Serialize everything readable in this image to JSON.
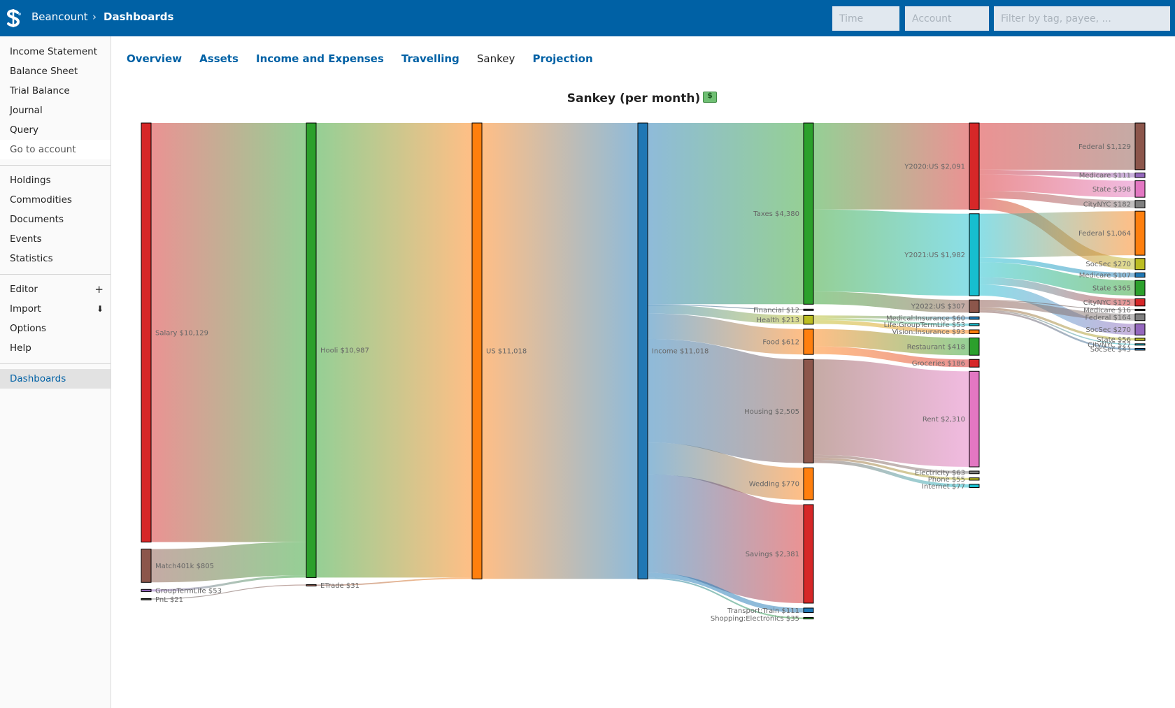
{
  "header": {
    "app_name": "Beancount",
    "separator": "›",
    "page": "Dashboards",
    "time_placeholder": "Time",
    "account_placeholder": "Account",
    "filter_placeholder": "Filter by tag, payee, ..."
  },
  "sidebar": {
    "group1": [
      "Income Statement",
      "Balance Sheet",
      "Trial Balance",
      "Journal",
      "Query"
    ],
    "goto": "Go to account",
    "group2": [
      "Holdings",
      "Commodities",
      "Documents",
      "Events",
      "Statistics"
    ],
    "editor": "Editor",
    "editor_badge": "+",
    "import": "Import",
    "import_badge": "⬇",
    "options": "Options",
    "help": "Help",
    "dashboards": "Dashboards"
  },
  "tabs": [
    "Overview",
    "Assets",
    "Income and Expenses",
    "Travelling",
    "Sankey",
    "Projection"
  ],
  "active_tab": "Sankey",
  "chart": {
    "title": "Sankey (per month)"
  },
  "chart_data": {
    "type": "sankey",
    "title": "Sankey (per month)",
    "nodes": [
      {
        "id": "salary",
        "label": "Salary $10,129",
        "column": 0,
        "value": 10129,
        "color": "#d62728"
      },
      {
        "id": "match401k",
        "label": "Match401k $805",
        "column": 0,
        "value": 805,
        "color": "#8c564b"
      },
      {
        "id": "gtl_in",
        "label": "GroupTermLife $53",
        "column": 0,
        "value": 53,
        "color": "#9467bd"
      },
      {
        "id": "pnl",
        "label": "PnL $21",
        "column": 0,
        "value": 21,
        "color": "#444444"
      },
      {
        "id": "hooli",
        "label": "Hooli $10,987",
        "column": 1,
        "value": 10987,
        "color": "#2ca02c"
      },
      {
        "id": "etrade",
        "label": "ETrade $31",
        "column": 1,
        "value": 31,
        "color": "#8c564b"
      },
      {
        "id": "us",
        "label": "US $11,018",
        "column": 2,
        "value": 11018,
        "color": "#ff7f0e"
      },
      {
        "id": "income",
        "label": "Income $11,018",
        "column": 3,
        "value": 11018,
        "color": "#1f77b4"
      },
      {
        "id": "taxes",
        "label": "Taxes $4,380",
        "column": 4,
        "value": 4380,
        "color": "#2ca02c"
      },
      {
        "id": "financial",
        "label": "Financial $12",
        "column": 4,
        "value": 12,
        "color": "#444444"
      },
      {
        "id": "health",
        "label": "Health $213",
        "column": 4,
        "value": 213,
        "color": "#bcbd22"
      },
      {
        "id": "food",
        "label": "Food $612",
        "column": 4,
        "value": 612,
        "color": "#ff7f0e"
      },
      {
        "id": "housing",
        "label": "Housing $2,505",
        "column": 4,
        "value": 2505,
        "color": "#8c564b"
      },
      {
        "id": "wedding",
        "label": "Wedding $770",
        "column": 4,
        "value": 770,
        "color": "#ff7f0e"
      },
      {
        "id": "savings",
        "label": "Savings $2,381",
        "column": 4,
        "value": 2381,
        "color": "#d62728"
      },
      {
        "id": "transport",
        "label": "Transport:Train $111",
        "column": 4,
        "value": 111,
        "color": "#1f77b4"
      },
      {
        "id": "shopping",
        "label": "Shopping:Electronics $35",
        "column": 4,
        "value": 35,
        "color": "#2ca02c"
      },
      {
        "id": "y2020",
        "label": "Y2020:US $2,091",
        "column": 5,
        "value": 2091,
        "color": "#d62728"
      },
      {
        "id": "y2021",
        "label": "Y2021:US $1,982",
        "column": 5,
        "value": 1982,
        "color": "#17becf"
      },
      {
        "id": "y2022",
        "label": "Y2022:US $307",
        "column": 5,
        "value": 307,
        "color": "#8c564b"
      },
      {
        "id": "medins",
        "label": "Medical:Insurance $60",
        "column": 5,
        "value": 60,
        "color": "#1f77b4"
      },
      {
        "id": "lifegtl",
        "label": "Life:GroupTermLife $53",
        "column": 5,
        "value": 53,
        "color": "#17becf"
      },
      {
        "id": "visins",
        "label": "Vision:Insurance $93",
        "column": 5,
        "value": 93,
        "color": "#ff7f0e"
      },
      {
        "id": "restaurant",
        "label": "Restaurant $418",
        "column": 5,
        "value": 418,
        "color": "#2ca02c"
      },
      {
        "id": "groceries",
        "label": "Groceries $186",
        "column": 5,
        "value": 186,
        "color": "#d62728"
      },
      {
        "id": "rent",
        "label": "Rent $2,310",
        "column": 5,
        "value": 2310,
        "color": "#e377c2"
      },
      {
        "id": "electricity",
        "label": "Electricity $63",
        "column": 5,
        "value": 63,
        "color": "#7f7f7f"
      },
      {
        "id": "phone",
        "label": "Phone $55",
        "column": 5,
        "value": 55,
        "color": "#bcbd22"
      },
      {
        "id": "internet",
        "label": "Internet $77",
        "column": 5,
        "value": 77,
        "color": "#17becf"
      },
      {
        "id": "fed20",
        "label": "Federal $1,129",
        "column": 6,
        "value": 1129,
        "color": "#8c564b"
      },
      {
        "id": "med20",
        "label": "Medicare $111",
        "column": 6,
        "value": 111,
        "color": "#9467bd"
      },
      {
        "id": "state20",
        "label": "State $398",
        "column": 6,
        "value": 398,
        "color": "#e377c2"
      },
      {
        "id": "city20",
        "label": "CityNYC $182",
        "column": 6,
        "value": 182,
        "color": "#7f7f7f"
      },
      {
        "id": "fed21",
        "label": "Federal $1,064",
        "column": 6,
        "value": 1064,
        "color": "#ff7f0e"
      },
      {
        "id": "soc20",
        "label": "SocSec $270",
        "column": 6,
        "value": 270,
        "color": "#bcbd22"
      },
      {
        "id": "med21",
        "label": "Medicare $107",
        "column": 6,
        "value": 107,
        "color": "#1f77b4"
      },
      {
        "id": "state21",
        "label": "State $365",
        "column": 6,
        "value": 365,
        "color": "#2ca02c"
      },
      {
        "id": "city21",
        "label": "CityNYC $175",
        "column": 6,
        "value": 175,
        "color": "#d62728"
      },
      {
        "id": "med22",
        "label": "Medicare $16",
        "column": 6,
        "value": 16,
        "color": "#444444"
      },
      {
        "id": "fed22",
        "label": "Federal $164",
        "column": 6,
        "value": 164,
        "color": "#7f7f7f"
      },
      {
        "id": "soc21",
        "label": "SocSec $270",
        "column": 6,
        "value": 270,
        "color": "#9467bd"
      },
      {
        "id": "state22",
        "label": "State $56",
        "column": 6,
        "value": 56,
        "color": "#bcbd22"
      },
      {
        "id": "city22",
        "label": "CityNYC $27",
        "column": 6,
        "value": 27,
        "color": "#17becf"
      },
      {
        "id": "soc22",
        "label": "SocSec $43",
        "column": 6,
        "value": 43,
        "color": "#1f77b4"
      }
    ],
    "links": [
      {
        "source": "salary",
        "target": "hooli",
        "value": 10129
      },
      {
        "source": "match401k",
        "target": "hooli",
        "value": 805
      },
      {
        "source": "gtl_in",
        "target": "hooli",
        "value": 53
      },
      {
        "source": "pnl",
        "target": "etrade",
        "value": 21
      },
      {
        "source": "hooli",
        "target": "us",
        "value": 10987
      },
      {
        "source": "etrade",
        "target": "us",
        "value": 31
      },
      {
        "source": "us",
        "target": "income",
        "value": 11018
      },
      {
        "source": "income",
        "target": "taxes",
        "value": 4380
      },
      {
        "source": "income",
        "target": "financial",
        "value": 12
      },
      {
        "source": "income",
        "target": "health",
        "value": 213
      },
      {
        "source": "income",
        "target": "food",
        "value": 612
      },
      {
        "source": "income",
        "target": "housing",
        "value": 2505
      },
      {
        "source": "income",
        "target": "wedding",
        "value": 770
      },
      {
        "source": "income",
        "target": "savings",
        "value": 2381
      },
      {
        "source": "income",
        "target": "transport",
        "value": 111
      },
      {
        "source": "income",
        "target": "shopping",
        "value": 35
      },
      {
        "source": "taxes",
        "target": "y2020",
        "value": 2091
      },
      {
        "source": "taxes",
        "target": "y2021",
        "value": 1982
      },
      {
        "source": "taxes",
        "target": "y2022",
        "value": 307
      },
      {
        "source": "health",
        "target": "medins",
        "value": 60
      },
      {
        "source": "health",
        "target": "lifegtl",
        "value": 53
      },
      {
        "source": "health",
        "target": "visins",
        "value": 93
      },
      {
        "source": "food",
        "target": "restaurant",
        "value": 418
      },
      {
        "source": "food",
        "target": "groceries",
        "value": 186
      },
      {
        "source": "housing",
        "target": "rent",
        "value": 2310
      },
      {
        "source": "housing",
        "target": "electricity",
        "value": 63
      },
      {
        "source": "housing",
        "target": "phone",
        "value": 55
      },
      {
        "source": "housing",
        "target": "internet",
        "value": 77
      },
      {
        "source": "y2020",
        "target": "fed20",
        "value": 1129
      },
      {
        "source": "y2020",
        "target": "med20",
        "value": 111
      },
      {
        "source": "y2020",
        "target": "state20",
        "value": 398
      },
      {
        "source": "y2020",
        "target": "city20",
        "value": 182
      },
      {
        "source": "y2020",
        "target": "soc20",
        "value": 270
      },
      {
        "source": "y2021",
        "target": "fed21",
        "value": 1064
      },
      {
        "source": "y2021",
        "target": "med21",
        "value": 107
      },
      {
        "source": "y2021",
        "target": "state21",
        "value": 365
      },
      {
        "source": "y2021",
        "target": "city21",
        "value": 175
      },
      {
        "source": "y2021",
        "target": "soc21",
        "value": 270
      },
      {
        "source": "y2022",
        "target": "med22",
        "value": 16
      },
      {
        "source": "y2022",
        "target": "fed22",
        "value": 164
      },
      {
        "source": "y2022",
        "target": "state22",
        "value": 56
      },
      {
        "source": "y2022",
        "target": "city22",
        "value": 27
      },
      {
        "source": "y2022",
        "target": "soc22",
        "value": 43
      }
    ]
  }
}
